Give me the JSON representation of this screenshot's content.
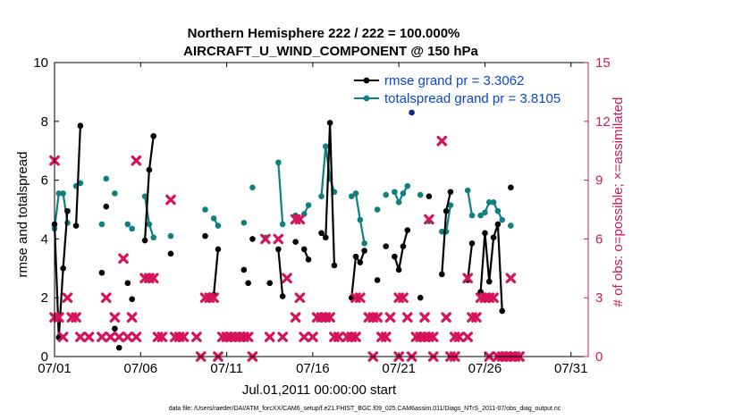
{
  "chart_data": {
    "type": "line",
    "title_line1": "Northern Hemisphere 222 / 222 = 100.000%",
    "title_line2": "AIRCRAFT_U_WIND_COMPONENT @ 150 hPa",
    "xlabel": "Jul.01,2011 00:00:00 start",
    "ylabel_left": "rmse and totalspread",
    "ylabel_right": "# of obs: o=possible; ×=assimilated",
    "footer": "data file: /Users/raeder/DAI/ATM_forcXX/CAM6_setup/f.e21.FHIST_BGC.f09_025.CAM6assim.011/Diags_NTrS_2011-07/obs_diag_output.nc",
    "x_ticks": [
      "07/01",
      "07/06",
      "07/11",
      "07/16",
      "07/21",
      "07/26",
      "07/31"
    ],
    "x_tick_days": [
      1,
      6,
      11,
      16,
      21,
      26,
      31
    ],
    "xlim": [
      1,
      32
    ],
    "ylim_left": [
      0,
      10
    ],
    "yticks_left": [
      "0",
      "2",
      "4",
      "6",
      "8",
      "10"
    ],
    "ylim_right": [
      0,
      15
    ],
    "yticks_right": [
      "0",
      "3",
      "6",
      "9",
      "12",
      "15"
    ],
    "colors": {
      "rmse": "#000000",
      "spread": "#0f7f7f",
      "obs": "#d6135a",
      "right_axis": "#cc1a5c",
      "legend_text": "#0a46d2"
    },
    "legend": [
      {
        "name": "rmse grand pr = 3.3062",
        "color": "#000000"
      },
      {
        "name": "totalspread grand pr = 3.8105",
        "color": "#0f7f7f"
      }
    ],
    "series": [
      {
        "name": "rmse",
        "axis": "left",
        "segments": [
          [
            [
              1.0,
              4.5
            ],
            [
              1.25,
              0.65
            ],
            [
              1.5,
              3.0
            ],
            [
              1.75,
              4.95
            ]
          ],
          [
            [
              2.25,
              4.45
            ],
            [
              2.5,
              7.85
            ]
          ],
          [
            [
              3.75,
              2.85
            ]
          ],
          [
            [
              4.0,
              5.1
            ]
          ],
          [
            [
              4.5,
              0.95
            ]
          ],
          [
            [
              4.75,
              0.3
            ]
          ],
          [
            [
              5.25,
              2.5
            ]
          ],
          [
            [
              5.5,
              1.95
            ]
          ],
          [
            [
              6.25,
              3.95
            ],
            [
              6.5,
              6.35
            ],
            [
              6.75,
              7.5
            ]
          ],
          [
            [
              7.75,
              3.5
            ]
          ],
          [
            [
              8.25,
              0.7
            ]
          ],
          [
            [
              9.75,
              4.1
            ]
          ],
          [
            [
              10.25,
              2.1
            ],
            [
              10.5,
              3.65
            ]
          ],
          [
            [
              12.0,
              2.95
            ]
          ],
          [
            [
              12.25,
              2.5
            ]
          ],
          [
            [
              12.5,
              4.0
            ]
          ],
          [
            [
              13.5,
              2.5
            ]
          ],
          [
            [
              14.0,
              3.65
            ],
            [
              14.25,
              2.05
            ]
          ],
          [
            [
              15.0,
              3.9
            ]
          ],
          [
            [
              15.5,
              3.65
            ],
            [
              15.75,
              3.3
            ]
          ],
          [
            [
              16.5,
              4.2
            ],
            [
              16.75,
              4.05
            ],
            [
              17.0,
              7.95
            ],
            [
              17.25,
              3.1
            ]
          ],
          [
            [
              18.25,
              2.0
            ],
            [
              18.5,
              3.4
            ],
            [
              18.75,
              3.2
            ],
            [
              19.0,
              3.6
            ]
          ],
          [
            [
              19.75,
              2.6
            ]
          ],
          [
            [
              20.25,
              3.75
            ]
          ],
          [
            [
              20.75,
              3.4
            ],
            [
              21.0,
              2.95
            ],
            [
              21.25,
              3.75
            ],
            [
              21.5,
              4.3
            ]
          ],
          [
            [
              22.25,
              2.0
            ]
          ],
          [
            [
              22.75,
              5.45
            ]
          ],
          [
            [
              23.5,
              2.8
            ],
            [
              23.75,
              4.95
            ],
            [
              24.0,
              5.6
            ]
          ],
          [
            [
              25.0,
              2.6
            ],
            [
              25.25,
              3.85
            ]
          ],
          [
            [
              25.75,
              2.2
            ],
            [
              26.0,
              4.2
            ],
            [
              26.25,
              2.55
            ],
            [
              26.5,
              4.05
            ],
            [
              26.75,
              4.5
            ],
            [
              27.0,
              1.55
            ]
          ],
          [
            [
              27.5,
              5.75
            ]
          ]
        ]
      },
      {
        "name": "totalspread",
        "axis": "left",
        "segments": [
          [
            [
              1.0,
              4.35
            ],
            [
              1.25,
              5.55
            ],
            [
              1.5,
              5.55
            ],
            [
              1.75,
              4.55
            ]
          ],
          [
            [
              2.25,
              5.8
            ],
            [
              2.5,
              5.9
            ]
          ],
          [
            [
              3.75,
              4.5
            ]
          ],
          [
            [
              4.0,
              6.05
            ]
          ],
          [
            [
              4.5,
              5.55
            ]
          ],
          [
            [
              5.25,
              4.5
            ]
          ],
          [
            [
              5.5,
              4.35
            ]
          ],
          [
            [
              6.25,
              5.45
            ],
            [
              6.5,
              4.5
            ],
            [
              6.75,
              4.05
            ]
          ],
          [
            [
              7.75,
              4.1
            ]
          ],
          [
            [
              9.75,
              5.0
            ]
          ],
          [
            [
              10.25,
              4.7
            ],
            [
              10.5,
              4.45
            ]
          ],
          [
            [
              12.0,
              4.55
            ]
          ],
          [
            [
              12.5,
              5.75
            ]
          ],
          [
            [
              13.25,
              4.05
            ]
          ],
          [
            [
              14.0,
              6.6
            ],
            [
              14.25,
              4.5
            ]
          ],
          [
            [
              15.0,
              4.8
            ]
          ],
          [
            [
              15.5,
              4.85
            ],
            [
              15.75,
              5.15
            ]
          ],
          [
            [
              16.5,
              5.45
            ],
            [
              16.75,
              7.15
            ],
            [
              17.0,
              6.05
            ],
            [
              17.25,
              5.6
            ]
          ],
          [
            [
              18.25,
              5.45
            ],
            [
              18.5,
              5.55
            ],
            [
              18.75,
              4.65
            ],
            [
              19.0,
              3.85
            ]
          ],
          [
            [
              19.75,
              5.0
            ]
          ],
          [
            [
              20.25,
              5.5
            ]
          ],
          [
            [
              20.75,
              5.6
            ],
            [
              21.0,
              5.25
            ],
            [
              21.25,
              5.55
            ],
            [
              21.5,
              5.8
            ]
          ],
          [
            [
              22.25,
              5.5
            ]
          ],
          [
            [
              22.75,
              4.6
            ]
          ],
          [
            [
              23.5,
              4.25
            ],
            [
              23.75,
              4.25
            ],
            [
              24.0,
              5.15
            ]
          ],
          [
            [
              25.0,
              5.65
            ],
            [
              25.25,
              4.8
            ]
          ],
          [
            [
              25.75,
              4.8
            ],
            [
              26.0,
              4.9
            ],
            [
              26.25,
              5.25
            ],
            [
              26.5,
              5.25
            ],
            [
              26.75,
              4.95
            ],
            [
              27.0,
              4.65
            ]
          ],
          [
            [
              27.5,
              4.45
            ]
          ]
        ]
      }
    ],
    "obs_possible": [
      [
        1.0,
        2
      ],
      [
        1.25,
        2
      ],
      [
        1.5,
        1
      ],
      [
        1.75,
        3
      ],
      [
        2.0,
        2
      ],
      [
        2.25,
        2
      ],
      [
        2.5,
        1
      ],
      [
        3.75,
        1
      ],
      [
        4.0,
        3
      ],
      [
        4.25,
        1
      ],
      [
        4.5,
        2
      ],
      [
        4.75,
        1
      ],
      [
        5.0,
        5
      ],
      [
        5.25,
        1
      ],
      [
        5.5,
        2
      ],
      [
        5.75,
        1
      ],
      [
        6.25,
        4
      ],
      [
        6.5,
        4
      ],
      [
        6.75,
        4
      ],
      [
        7.25,
        1
      ],
      [
        7.75,
        8
      ],
      [
        8.0,
        1
      ],
      [
        8.25,
        1
      ],
      [
        8.5,
        1
      ],
      [
        9.25,
        1
      ],
      [
        9.5,
        0
      ],
      [
        9.75,
        3
      ],
      [
        10.0,
        3
      ],
      [
        10.25,
        3
      ],
      [
        10.5,
        0
      ],
      [
        10.75,
        1
      ],
      [
        11.0,
        1
      ],
      [
        11.25,
        1
      ],
      [
        11.5,
        1
      ],
      [
        11.75,
        1
      ],
      [
        12.0,
        1
      ],
      [
        12.25,
        1
      ],
      [
        12.5,
        0
      ],
      [
        13.25,
        6
      ],
      [
        13.5,
        1
      ],
      [
        14.25,
        1
      ],
      [
        14.5,
        4
      ],
      [
        15.0,
        2
      ],
      [
        15.25,
        3
      ],
      [
        15.5,
        1
      ],
      [
        16.0,
        1
      ],
      [
        16.25,
        2
      ],
      [
        16.5,
        2
      ],
      [
        16.75,
        2
      ],
      [
        17.0,
        2
      ],
      [
        17.25,
        1
      ],
      [
        17.5,
        1
      ],
      [
        18.0,
        1
      ],
      [
        18.25,
        1
      ],
      [
        18.5,
        1
      ],
      [
        18.75,
        3
      ],
      [
        19.25,
        2
      ],
      [
        19.5,
        2
      ],
      [
        19.75,
        2
      ],
      [
        20.0,
        1
      ],
      [
        20.25,
        1
      ],
      [
        20.5,
        2
      ],
      [
        21.0,
        3
      ],
      [
        21.25,
        3
      ],
      [
        21.5,
        2
      ],
      [
        22.0,
        1
      ],
      [
        22.25,
        1
      ],
      [
        22.5,
        2
      ],
      [
        22.75,
        1
      ],
      [
        23.0,
        1
      ],
      [
        23.5,
        11
      ],
      [
        23.75,
        2
      ],
      [
        24.25,
        1
      ],
      [
        24.5,
        1
      ],
      [
        25.0,
        4
      ],
      [
        25.25,
        2
      ],
      [
        25.5,
        2
      ],
      [
        25.75,
        3
      ],
      [
        26.0,
        3
      ],
      [
        26.25,
        3
      ],
      [
        26.5,
        3
      ],
      [
        26.75,
        0
      ],
      [
        27.0,
        0
      ],
      [
        27.25,
        0
      ],
      [
        27.5,
        4
      ],
      [
        27.75,
        0
      ],
      [
        28.0,
        0
      ]
    ],
    "obs_assimilated": [
      [
        1.0,
        10
      ],
      [
        3.0,
        1
      ],
      [
        5.75,
        10
      ],
      [
        7.0,
        1
      ],
      [
        14.0,
        6
      ],
      [
        15.0,
        7
      ],
      [
        15.25,
        7
      ],
      [
        18.5,
        3
      ],
      [
        19.5,
        0
      ],
      [
        21.0,
        0
      ],
      [
        21.75,
        0
      ],
      [
        22.5,
        1
      ],
      [
        22.75,
        7
      ],
      [
        23.0,
        0
      ],
      [
        24.0,
        0
      ],
      [
        24.25,
        0
      ],
      [
        25.0,
        1
      ],
      [
        26.25,
        0
      ],
      [
        27.25,
        0
      ],
      [
        27.5,
        0
      ],
      [
        28.0,
        0
      ]
    ],
    "extra_point": [
      21.75,
      8.3
    ]
  }
}
